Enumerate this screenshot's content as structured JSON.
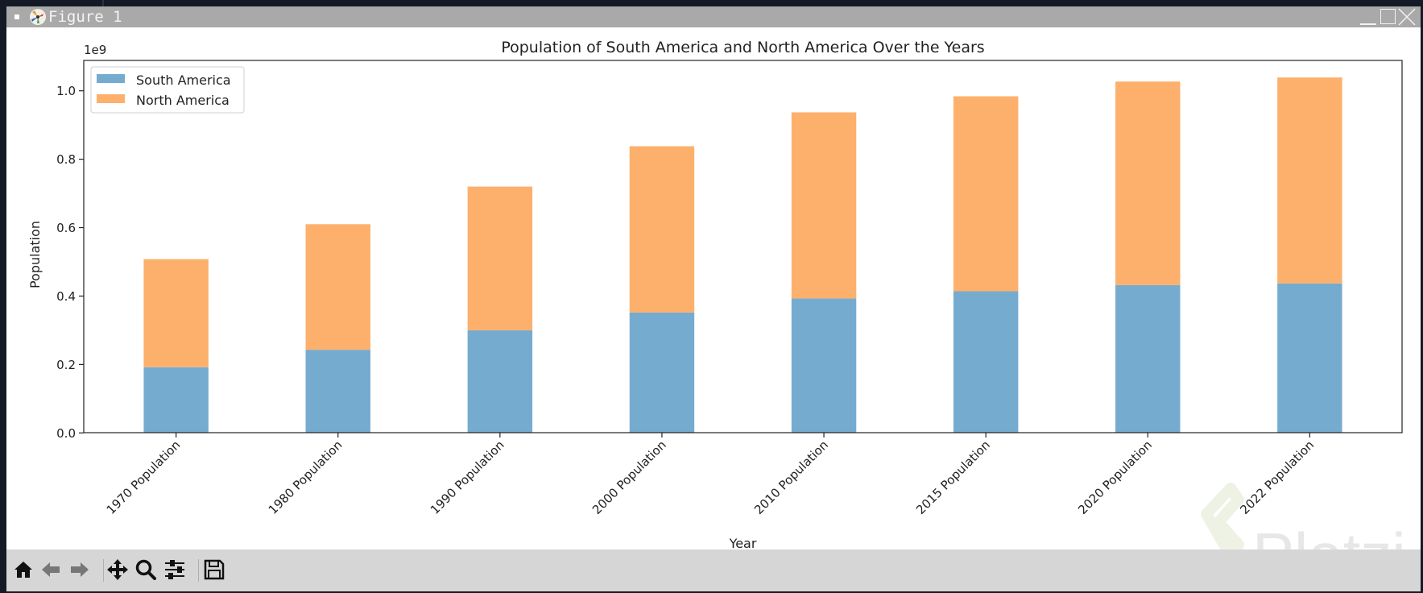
{
  "window": {
    "title": "Figure 1",
    "controls": [
      "minimize",
      "maximize",
      "close"
    ],
    "app_icon": "matplotlib-icon"
  },
  "toolbar": {
    "items": [
      {
        "name": "home",
        "icon": "home-icon",
        "tooltip": "Reset original view"
      },
      {
        "name": "back",
        "icon": "arrow-left-icon",
        "tooltip": "Back to previous view"
      },
      {
        "name": "forward",
        "icon": "arrow-right-icon",
        "tooltip": "Forward to next view"
      },
      {
        "name": "pan",
        "icon": "move-icon",
        "tooltip": "Pan axes"
      },
      {
        "name": "zoom",
        "icon": "magnifier-icon",
        "tooltip": "Zoom to rectangle"
      },
      {
        "name": "configure",
        "icon": "sliders-icon",
        "tooltip": "Configure subplots"
      },
      {
        "name": "save",
        "icon": "floppy-disk-icon",
        "tooltip": "Save the figure"
      }
    ]
  },
  "watermark": {
    "text": "Platzi",
    "color": "#e9ecea"
  },
  "colors": {
    "south_america": "#76abd0",
    "north_america": "#fdb06c",
    "titlebar": "#a9a9a9",
    "toolbar": "#d6d6d6",
    "desktop": "#141b27"
  },
  "chart_data": {
    "type": "bar",
    "stacked": true,
    "title": "Population of South America and North America Over the Years",
    "xlabel": "Year",
    "ylabel": "Population",
    "y_offset_label": "1e9",
    "categories": [
      "1970 Population",
      "1980 Population",
      "1990 Population",
      "2000 Population",
      "2010 Population",
      "2015 Population",
      "2020 Population",
      "2022 Population"
    ],
    "series": [
      {
        "name": "South America",
        "color": "#76abd0",
        "values": [
          0.192,
          0.243,
          0.3,
          0.352,
          0.393,
          0.414,
          0.432,
          0.437
        ]
      },
      {
        "name": "North America",
        "color": "#fdb06c",
        "values": [
          0.316,
          0.367,
          0.42,
          0.486,
          0.544,
          0.57,
          0.595,
          0.602
        ]
      }
    ],
    "value_units": "1e9 people",
    "ylim": [
      0,
      1.09
    ],
    "yticks": [
      0.0,
      0.2,
      0.4,
      0.6,
      0.8,
      1.0
    ],
    "ytick_labels": [
      "0.0",
      "0.2",
      "0.4",
      "0.6",
      "0.8",
      "1.0"
    ],
    "xtick_rotation": 45,
    "grid": false,
    "legend": {
      "position": "top-left",
      "entries": [
        "South America",
        "North America"
      ]
    }
  }
}
